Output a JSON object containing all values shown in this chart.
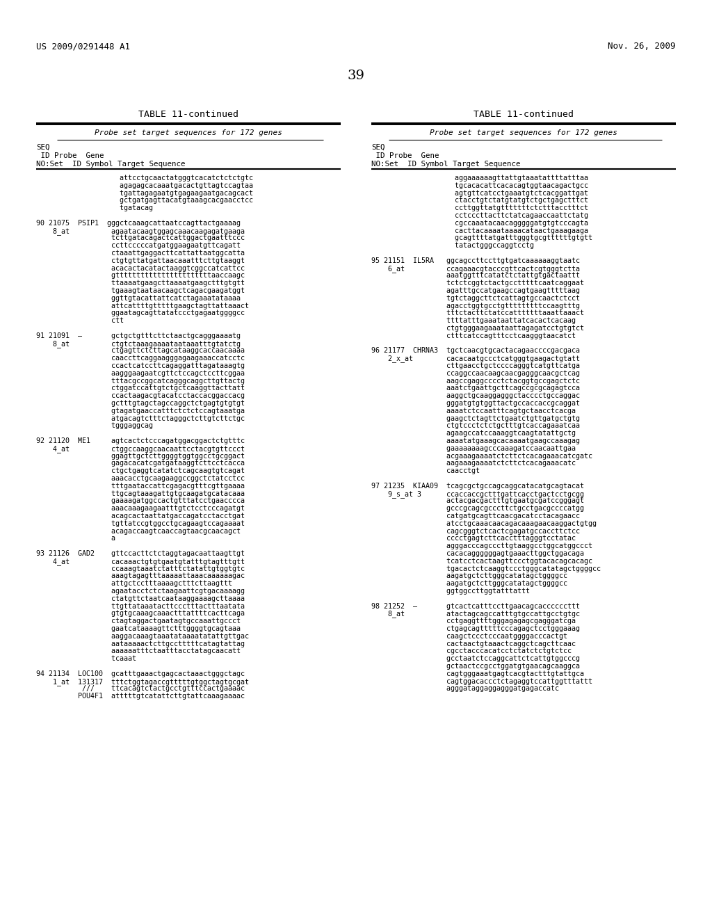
{
  "page_number": "39",
  "header_left": "US 2009/0291448 A1",
  "header_right": "Nov. 26, 2009",
  "table_title": "TABLE 11-continued",
  "table_subtitle": "Probe set target sequences for 172 genes",
  "bg_color": "#ffffff",
  "text_color": "#000000",
  "left_col_lines": [
    "                    attcctgcaactatgggtcacatctctctgtc",
    "                    agagagcacaaatgacactgttagtccagtaa",
    "                    tgattagagaatgtgagaagaatgacagcact",
    "                    gctgatgagttacatgtaaagcacgaacctcc",
    "                    tgatacag",
    "",
    "90 21075  PSIP1  gggctcaaagcattaatccagttactgaaaag",
    "    8_at          agaatacaagtggagcaaacaagagatgaaga",
    "                  tcttgatacagactcattggactgaatttccc",
    "                  ccttcccccatgatggaagaatgttcagatt",
    "                  ctaaattgaggacttcattattaatggcatta",
    "                  ctgtgttatgattaacaaatttcttgtaaggt",
    "                  acacactacatactaaggtcggccatcattcc",
    "                  gtttttttttttttttttttttttaaccaagc",
    "                  ttaaaatgaagcttaaaatgaagctttgtgtt",
    "                  tgaaagtaataacaagctcagacgaagatggt",
    "                  ggttgtacattattcatctagaaatataaaa",
    "                  attcattttgtttttgaagctagttattaaact",
    "                  ggaatagcagttatatccctgagaatggggcc",
    "                  ctt",
    "",
    "91 21091  –       gctgctgtttcttctaactgcagggaaaatg",
    "    8_at          ctgtctaaagaaaataataaatttgtatctg",
    "                  ctgagttctcttagcataaggcaccaacaaaa",
    "                  caaccttcaggaagggagaagaaaccatcctc",
    "                  ccactcatccttcagaggatttagataaagtg",
    "                  aagggaagaatcgttctccagctccttcggaa",
    "                  tttacgccggcatcagggcaggcttgttactg",
    "                  ctggatccattgtctgctcaaggttacttatt",
    "                  ccactaagacgtacatcctaccacggaccacg",
    "                  gctttgtagctagccaggctctgagtgtgtgt",
    "                  gtagatgaaccatttctctctccagtaaatga",
    "                  atgacagtctttctagggctcttgtcttctgc",
    "                  tgggaggcag",
    "",
    "92 21120  ME1     agtcactctcccagatggacggactctgtttc",
    "    4_at          ctggccaaggcaacaattcctacgtgttccct",
    "                  ggagttgctcttggggtggtggcctgcggact",
    "                  gagacacatcgatgataaggtcttcctcacca",
    "                  ctgctgaggtcatatctcagcaagtgtcagat",
    "                  aaacacctgcaagaaggccggctctatcctcc",
    "                  tttgaataccattcgagacgtttcgttgaaaa",
    "                  ttgcagtaaagattgtgcaagatgcatacaaa",
    "                  gaaaagatggccactgtttatcctgaacccca",
    "                  aaacaaagaagaatttgtctcctcccagatgt",
    "                  acagcactaattatgaccagatcctacctgat",
    "                  tgttatccgtggcctgcagaagtccagaaaat",
    "                  acagaccaagtcaaccagtaacgcaacagct",
    "                  a",
    "",
    "93 21126  GAD2    gttccacttctctaggtagacaattaagttgt",
    "    4_at          cacaaactgtgtgaatgtatttgtagtttgtt",
    "                  ccaaagtaaatctatttctatattgtggtgtc",
    "                  aaagtagagtttaaaaattaaacaaaaaagac",
    "                  attgctcctttaaaagctttcttaagttt",
    "                  agaatacctctctaagaattcgtgacaaaagg",
    "                  ctatgttctaatcaataaggaaaagcttaaaa",
    "                  ttgttataaatacttccctttactttaatata",
    "                  gtgtgcaaagcaaactttattttcacttcaga",
    "                  ctagtaggactgaatagtgccaaattgccct",
    "                  gaatcataaaagttctttggggtgcagtaaa",
    "                  aaggacaaagtaaatataaaatatattgttgac",
    "                  aataaaaactcttgcctttttcatagtattag",
    "                  aaaaaatttctaatttacctatagcaacatt",
    "                  tcaaat",
    "",
    "94 21134  LOC100  gcatttgaaactgagcactaaactgggctagc",
    "    1_at  131317  tttctggtagaccgtttttgtggctagtgcgat",
    "           ///    ttcacagtctactgcctgtttccactgaaaac",
    "          POU4F1  atttttgtcatattcttgtattcaaagaaaac"
  ],
  "right_col_lines": [
    "                    aggaaaaaagttattgtaaatattttatttaa",
    "                    tgcacacattcacacagtggtaacagactgcc",
    "                    agtgttcatcctgaaatgtctcacggattgat",
    "                    ctacctgtctatgtatgtctgctgagctttct",
    "                    ccttggttatgtttttttctctttacctttct",
    "                    cctcccttacttctatcagaaccaattctatg",
    "                    cgccaaatacaacagggggatgtgtcccagta",
    "                    cacttacaaaataaaacataactgaaagaaga",
    "                    gcagttttatgatttgggtgcgttttttgtgtt",
    "                    tatactgggccaggtcctg",
    "",
    "95 21151  IL5RA   ggcagccttccttgtgatcaaaaaaggtaatc",
    "    6_at          ccagaaacgtacccgttcactcgtgggtctta",
    "                  aaatggtttcatatctctattgtgactaattt",
    "                  tctctcggtctactgcctttttcaatcaggaat",
    "                  agatttgccatgaagccagtgaagtttttaag",
    "                  tgtctaggcttctcattagtgccaactctcct",
    "                  agacctggtgcctgtttttttttccaagtttg",
    "                  tttctacttctatccatttttttaaattaaact",
    "                  ttttatttgaaataattatcacactcacaag",
    "                  ctgtgggaagaaataattagagatcctgtgtct",
    "                  ctttcatccagtttcctcaagggtaacatct",
    "",
    "96 21177  CHRNA3  tgctcaacgtgcactacagaaccccgacgaca",
    "    2_x_at        cacacaatgccctcatgggtgaagactgtatt",
    "                  cttgaacctgctccccagggtcatgttcatga",
    "                  ccaggccaacaagcaacgagggcaacgctcag",
    "                  aagccgaggcccctctacggtgccgagctctc",
    "                  aaatctgaattgcttcagccgcgcagagtcca",
    "                  aaggctgcaaggagggctacccctgccaggac",
    "                  gggatgtgtggttactgccaccaccgcaggat",
    "                  aaaatctccaatttcagtgctaacctcacga",
    "                  gaagctctagttctgaatctgttgatgctgtg",
    "                  ctgtccctctctgctttgtcaccagaaatcaa",
    "                  agaagccatccaaaggtcaagtatattgctg",
    "                  aaaatatgaaagcacaaaatgaagccaaagag",
    "                  gaaaaaaaagcccaaagatccaacaattgaa",
    "                  acgaaagaaaatctcttctcacagaaacatcgatc",
    "                  aagaaagaaaatctcttctcacagaaacatc",
    "                  caacctgt",
    "",
    "97 21235  KIAA09  tcagcgctgccagcaggcatacatgcagtacat",
    "    9_s_at 3      ccaccaccgctttgattcacctgactcctgcgg",
    "                  actacgacgactttgtgaatgcgatccgggagt",
    "                  gcccgcagcgcccttctgcctgacgccccatgg",
    "                  catgatgcagttcaacgacatcctacagaacc",
    "                  atcctgcaaacaacagacaaagaacaaggactgtgg",
    "                  cagcgggtctcactcgagatgccaccttctcc",
    "                  cccctgagtcttcacctttagggtcctatac",
    "                  agggacccagcccttgtaaggcctggcatggccct",
    "                  cacacaggggggagtgaaacttggctggacaga",
    "                  tcatcctcactaagttccctggtacacagcacagc",
    "                  tgacactctcaaggtccctgggcatatagctggggcc",
    "                  aagatgctcttgggcatatagctggggcc",
    "                  aagatgctcttgggcatatagctggggcc",
    "                  ggtggccttggtatttattt",
    "",
    "98 21252  –       gtcactcatttccttgaacagcaccccccttt",
    "    8_at          atactagcagccatttgtgccattgcctgtgc",
    "                  cctgaggttttgggagagagcgagggatcga",
    "                  ctgagcagtttttcccagagctcctgggaaag",
    "                  caagctccctcccaatggggacccactgt",
    "                  cactaactgtaaactcaggctcagcttcaac",
    "                  cgcctacccacatcctctatctctgtctcc",
    "                  gcctaatctccaggcattctcattgtggcccg",
    "                  gctaactccgcctggatgtgaacagcaaggca",
    "                  cagtgggaaatgagtcacgtactttgtattgca",
    "                  cagtggacaccctctagaggtccattggtttattt",
    "                  agggataggaggagggatgagaccatc"
  ]
}
